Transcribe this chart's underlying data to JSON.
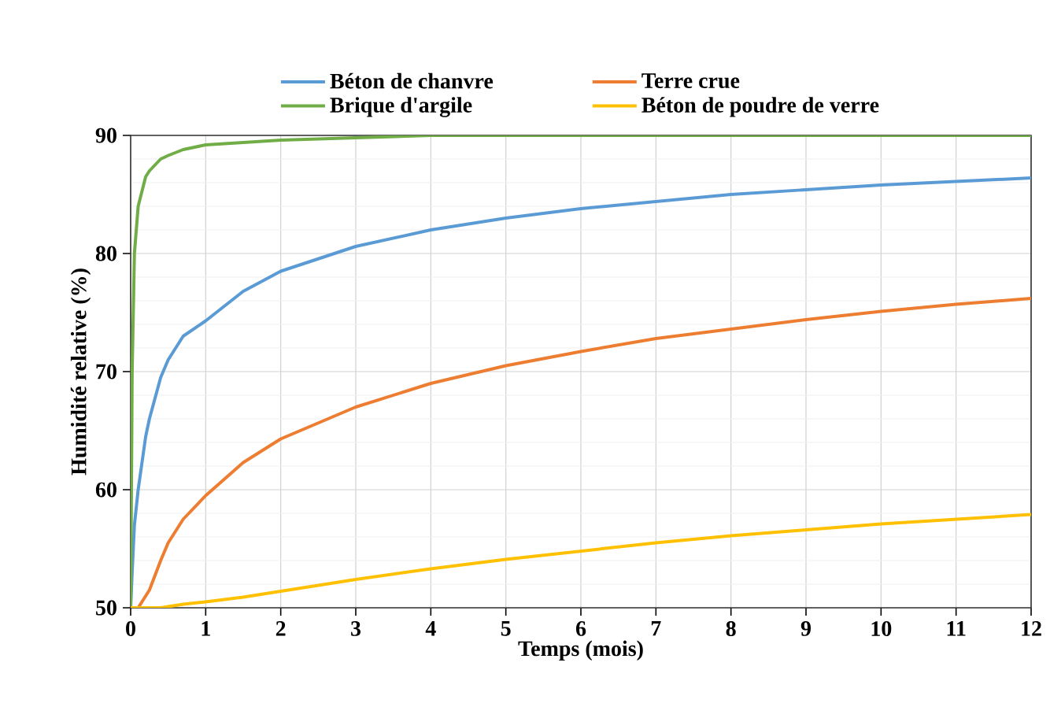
{
  "chart_data": {
    "type": "line",
    "xlabel": "Temps (mois)",
    "ylabel": "Humidité relative (%)",
    "x": [
      0,
      0.02,
      0.05,
      0.1,
      0.2,
      0.25,
      0.4,
      0.5,
      0.7,
      1,
      1.5,
      2,
      3,
      4,
      5,
      6,
      7,
      8,
      9,
      10,
      11,
      12
    ],
    "series": [
      {
        "name": "Béton de chanvre",
        "color": "#5b9bd5",
        "values": [
          50,
          53,
          57,
          60,
          64.5,
          66,
          69.5,
          71,
          73,
          74.3,
          76.8,
          78.5,
          80.6,
          82,
          83,
          83.8,
          84.4,
          85,
          85.4,
          85.8,
          86.1,
          86.4
        ]
      },
      {
        "name": "Terre crue",
        "color": "#ed7d31",
        "values": [
          50,
          50,
          50,
          50,
          51,
          51.5,
          54,
          55.5,
          57.5,
          59.5,
          62.3,
          64.3,
          67,
          69,
          70.5,
          71.7,
          72.8,
          73.6,
          74.4,
          75.1,
          75.7,
          76.2
        ]
      },
      {
        "name": "Brique d'argile",
        "color": "#70ad47",
        "values": [
          50,
          70,
          80,
          84,
          86.5,
          87,
          88,
          88.3,
          88.8,
          89.2,
          89.4,
          89.6,
          89.8,
          90,
          90,
          90,
          90,
          90,
          90,
          90,
          90,
          90
        ]
      },
      {
        "name": "Béton de poudre de verre",
        "color": "#ffc000",
        "values": [
          50,
          50,
          50,
          50,
          50,
          50,
          50,
          50.1,
          50.3,
          50.5,
          50.9,
          51.4,
          52.4,
          53.3,
          54.1,
          54.8,
          55.5,
          56.1,
          56.6,
          57.1,
          57.5,
          57.9
        ]
      }
    ],
    "xlim": [
      0,
      12
    ],
    "ylim": [
      50,
      90
    ],
    "xticks": [
      0,
      1,
      2,
      3,
      4,
      5,
      6,
      7,
      8,
      9,
      10,
      11,
      12
    ],
    "yticks": [
      50,
      60,
      70,
      80,
      90
    ],
    "grid": true,
    "legend": "top",
    "marker": "none",
    "line_style": "solid"
  }
}
